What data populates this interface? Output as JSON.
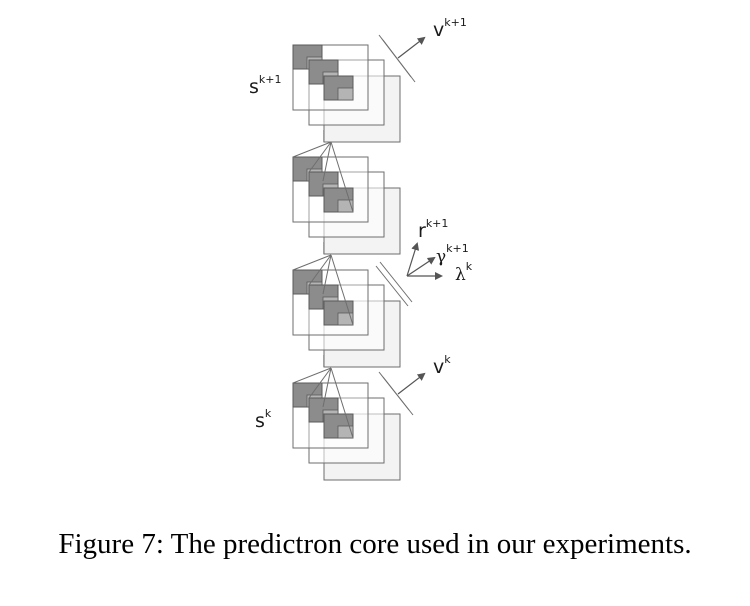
{
  "labels": {
    "v_top": {
      "base": "v",
      "sup": "k+1"
    },
    "s_top": {
      "base": "s",
      "sup": "k+1"
    },
    "r": {
      "base": "r",
      "sup": "k+1"
    },
    "gamma": {
      "base": "γ",
      "sup": "k+1"
    },
    "lambda": {
      "base": "λ",
      "sup": "k"
    },
    "v_bottom": {
      "base": "v",
      "sup": "k"
    },
    "s_bottom": {
      "base": "s",
      "sup": "k"
    }
  },
  "caption": "Figure 7: The predictron core used in our experiments.",
  "colors": {
    "line": "#6e6e6e",
    "dark_fill": "#8c8c8c",
    "light_fill": "#f3f3f3",
    "connector": "#d2d2d2",
    "arrow": "#555555"
  }
}
